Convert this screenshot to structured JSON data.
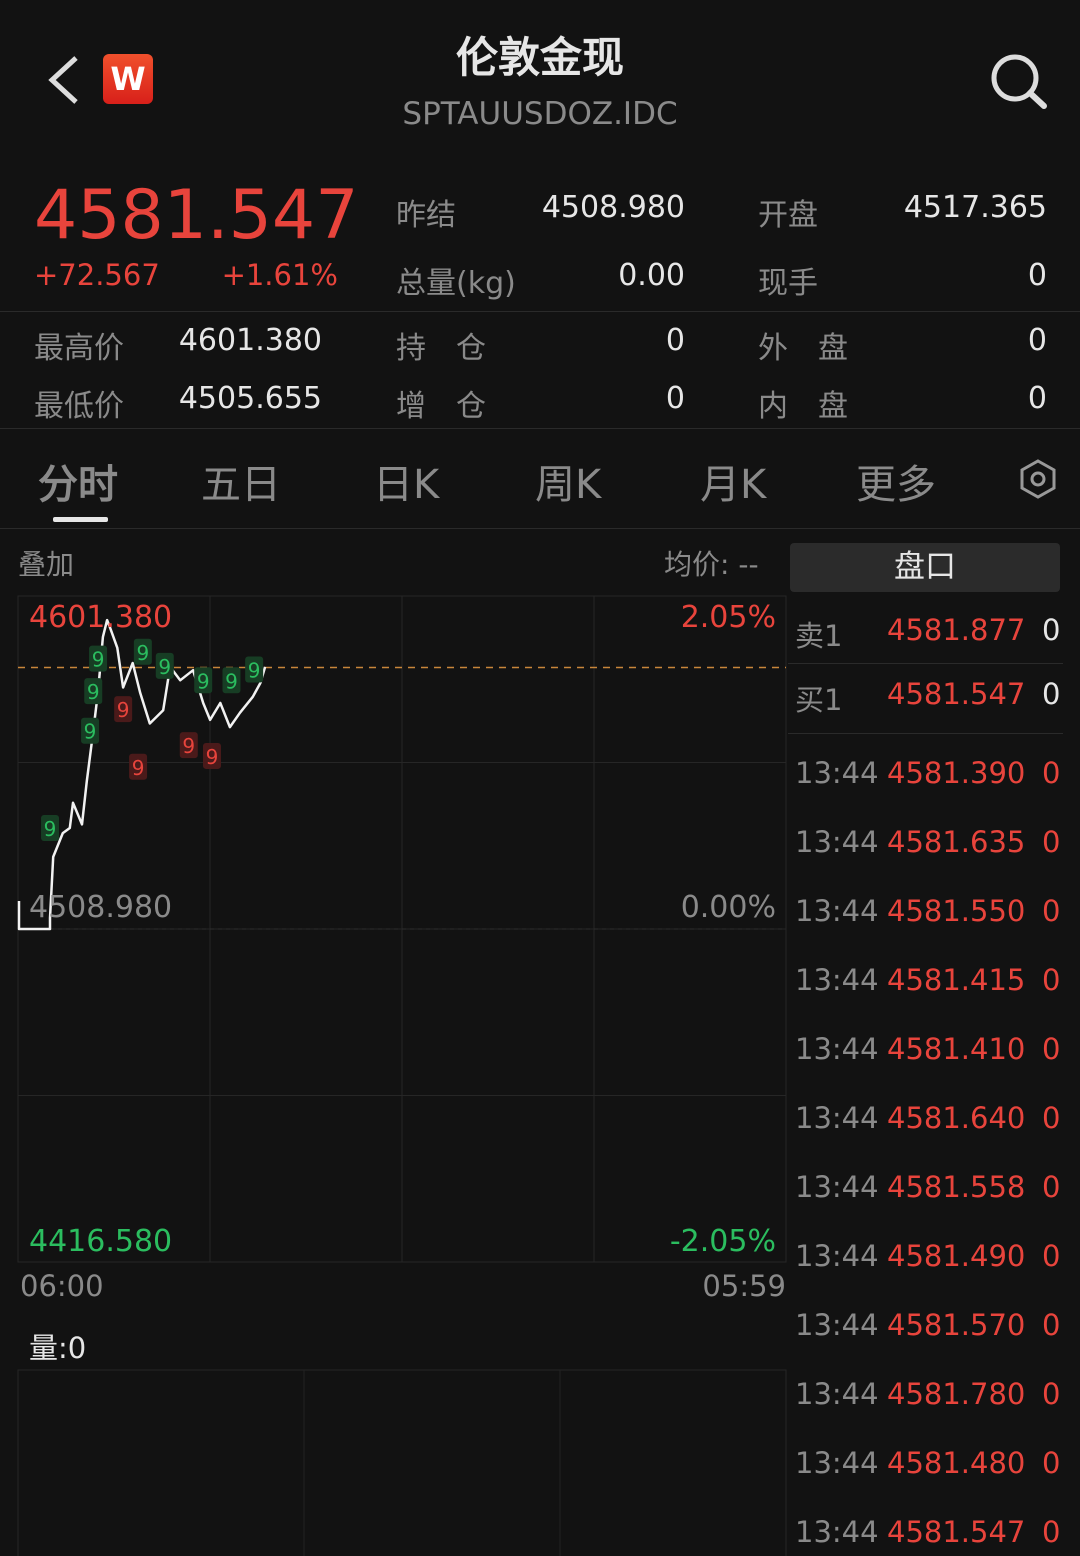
{
  "header": {
    "title": "伦敦金现",
    "code": "SPTAUUSDOZ.IDC",
    "logo": "W",
    "back_icon": "chevron-left",
    "search_icon": "search"
  },
  "quote": {
    "price": "4581.547",
    "change": "+72.567",
    "change_pct": "+1.61%",
    "fields": [
      {
        "label": "昨结",
        "value": "4508.980"
      },
      {
        "label": "开盘",
        "value": "4517.365"
      },
      {
        "label": "总量(kg)",
        "value": "0.00"
      },
      {
        "label": "现手",
        "value": "0"
      },
      {
        "label": "最高价",
        "value": "4601.380"
      },
      {
        "label": "持　仓",
        "value": "0"
      },
      {
        "label": "外　盘",
        "value": "0"
      },
      {
        "label": "最低价",
        "value": "4505.655"
      },
      {
        "label": "增　仓",
        "value": "0"
      },
      {
        "label": "内　盘",
        "value": "0"
      }
    ]
  },
  "tabs": [
    {
      "label": "分时",
      "active": true
    },
    {
      "label": "五日"
    },
    {
      "label": "日K"
    },
    {
      "label": "周K"
    },
    {
      "label": "月K"
    },
    {
      "label": "更多"
    }
  ],
  "chart_header": {
    "overlay": "叠加",
    "avg_label": "均价:",
    "avg_value": "--",
    "book_button": "盘口"
  },
  "chart_data": {
    "type": "line",
    "y_high_label": "4601.380",
    "y_mid_label": "4508.980",
    "y_low_label": "4416.580",
    "pct_high": "2.05%",
    "pct_mid": "0.00%",
    "pct_low": "-2.05%",
    "x_start": "06:00",
    "x_end": "05:59",
    "ylim": [
      4416.58,
      4601.38
    ],
    "prev_close": 4508.98,
    "current": 4581.547,
    "times": [
      "06:00",
      "06:16",
      "06:17",
      "07:00",
      "07:06",
      "07:24",
      "07:37",
      "07:43",
      "08:00",
      "08:09",
      "08:21",
      "08:30",
      "08:39",
      "08:47",
      "08:52",
      "09:06",
      "09:17",
      "09:35",
      "09:49",
      "10:07",
      "10:32",
      "10:45",
      "11:04",
      "11:28",
      "11:47",
      "12:00",
      "12:19",
      "12:37",
      "12:56",
      "13:20",
      "13:34",
      "13:43"
    ],
    "prices": [
      4516,
      4516,
      4508.98,
      4512,
      4529,
      4535.6,
      4537,
      4544,
      4538,
      4550,
      4564,
      4575,
      4590,
      4594.7,
      4592.8,
      4587,
      4576,
      4582.8,
      4574.5,
      4566,
      4569.7,
      4581.7,
      4578,
      4580.8,
      4571.7,
      4567,
      4571.7,
      4565,
      4569,
      4573.4,
      4577.2,
      4581.7
    ],
    "markers": [
      {
        "time": "07:00",
        "price": 4537,
        "label": "9",
        "color": "green"
      },
      {
        "time": "08:15",
        "price": 4564,
        "label": "9",
        "color": "green"
      },
      {
        "time": "08:21",
        "price": 4575,
        "label": "9",
        "color": "green"
      },
      {
        "time": "08:30",
        "price": 4584,
        "label": "9",
        "color": "green"
      },
      {
        "time": "08:39",
        "price": 4597,
        "label": "9",
        "color": "green"
      },
      {
        "time": "09:17",
        "price": 4570,
        "label": "9",
        "color": "red"
      },
      {
        "time": "09:45",
        "price": 4554,
        "label": "9",
        "color": "red"
      },
      {
        "time": "10:35",
        "price": 4582,
        "label": "9",
        "color": "green"
      },
      {
        "time": "11:20",
        "price": 4560,
        "label": "9",
        "color": "red"
      },
      {
        "time": "11:26",
        "price": 4557,
        "label": "9",
        "color": "red"
      },
      {
        "time": "11:47",
        "price": 4578,
        "label": "9",
        "color": "green"
      },
      {
        "time": "12:40",
        "price": 4578,
        "label": "9",
        "color": "green"
      },
      {
        "time": "12:45",
        "price": 4581,
        "label": "9",
        "color": "green"
      }
    ]
  },
  "volume": {
    "label": "量:0"
  },
  "order_book": {
    "asks": [
      {
        "label": "卖1",
        "price": "4581.877",
        "qty": "0"
      }
    ],
    "bids": [
      {
        "label": "买1",
        "price": "4581.547",
        "qty": "0"
      }
    ],
    "ticks": [
      {
        "time": "13:44",
        "price": "4581.390",
        "qty": "0"
      },
      {
        "time": "13:44",
        "price": "4581.635",
        "qty": "0"
      },
      {
        "time": "13:44",
        "price": "4581.550",
        "qty": "0"
      },
      {
        "time": "13:44",
        "price": "4581.415",
        "qty": "0"
      },
      {
        "time": "13:44",
        "price": "4581.410",
        "qty": "0"
      },
      {
        "time": "13:44",
        "price": "4581.640",
        "qty": "0"
      },
      {
        "time": "13:44",
        "price": "4581.558",
        "qty": "0"
      },
      {
        "time": "13:44",
        "price": "4581.490",
        "qty": "0"
      },
      {
        "time": "13:44",
        "price": "4581.570",
        "qty": "0"
      },
      {
        "time": "13:44",
        "price": "4581.780",
        "qty": "0"
      },
      {
        "time": "13:44",
        "price": "4581.480",
        "qty": "0"
      },
      {
        "time": "13:44",
        "price": "4581.547",
        "qty": "0"
      }
    ]
  },
  "colors": {
    "up": "#e8443c",
    "down": "#2bbd5f",
    "bg": "#121212"
  }
}
